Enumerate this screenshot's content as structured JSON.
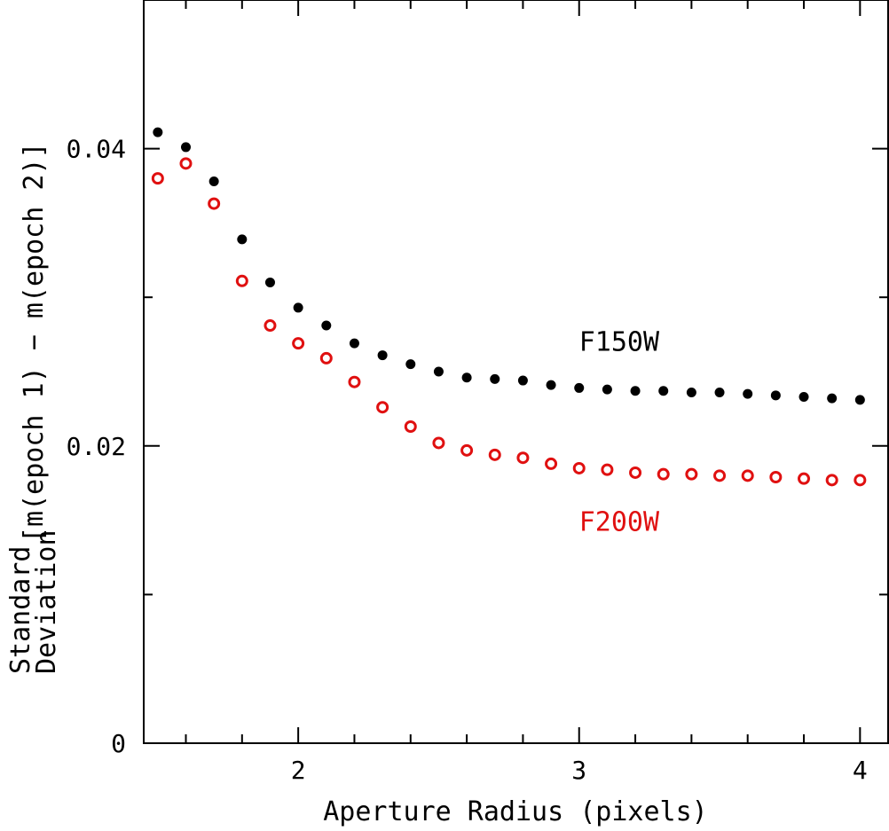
{
  "chart_data": {
    "type": "scatter",
    "title": "",
    "xlabel": "Aperture Radius (pixels)",
    "ylabel_line1": "Standard",
    "ylabel_line2": "Deviation",
    "ylabel_bracket": "[m(epoch 1) − m(epoch 2)]",
    "xlim": [
      1.45,
      4.1
    ],
    "ylim": [
      0,
      0.05
    ],
    "x_ticks": [
      2,
      3,
      4
    ],
    "x_tick_labels": [
      "2",
      "3",
      "4"
    ],
    "x_minor_ticks": [
      1.6,
      1.8,
      2.2,
      2.4,
      2.6,
      2.8,
      3.2,
      3.4,
      3.6,
      3.8
    ],
    "y_ticks": [
      0,
      0.02,
      0.04
    ],
    "y_tick_labels": [
      "0",
      "0.02",
      "0.04"
    ],
    "y_minor_ticks": [
      0.01,
      0.03
    ],
    "x": [
      1.5,
      1.6,
      1.7,
      1.8,
      1.9,
      2.0,
      2.1,
      2.2,
      2.3,
      2.4,
      2.5,
      2.6,
      2.7,
      2.8,
      2.9,
      3.0,
      3.1,
      3.2,
      3.3,
      3.4,
      3.5,
      3.6,
      3.7,
      3.8,
      3.9,
      4.0
    ],
    "series": [
      {
        "name": "F150W",
        "marker": "filled-circle",
        "color": "#000000",
        "values": [
          0.0411,
          0.0401,
          0.0378,
          0.0339,
          0.031,
          0.0293,
          0.0281,
          0.0269,
          0.0261,
          0.0255,
          0.025,
          0.0246,
          0.0245,
          0.0244,
          0.0241,
          0.0239,
          0.0238,
          0.0237,
          0.0237,
          0.0236,
          0.0236,
          0.0235,
          0.0234,
          0.0233,
          0.0232,
          0.0231
        ]
      },
      {
        "name": "F200W",
        "marker": "open-circle",
        "color": "#e01010",
        "values": [
          0.038,
          0.039,
          0.0363,
          0.0311,
          0.0281,
          0.0269,
          0.0259,
          0.0243,
          0.0226,
          0.0213,
          0.0202,
          0.0197,
          0.0194,
          0.0192,
          0.0188,
          0.0185,
          0.0184,
          0.0182,
          0.0181,
          0.0181,
          0.018,
          0.018,
          0.0179,
          0.0178,
          0.0177,
          0.0177
        ]
      }
    ],
    "annotations": [
      {
        "text": "F150W",
        "x": 3.0,
        "y": 0.0264,
        "color": "#000000"
      },
      {
        "text": "F200W",
        "x": 3.0,
        "y": 0.0143,
        "color": "#e01010"
      }
    ]
  }
}
